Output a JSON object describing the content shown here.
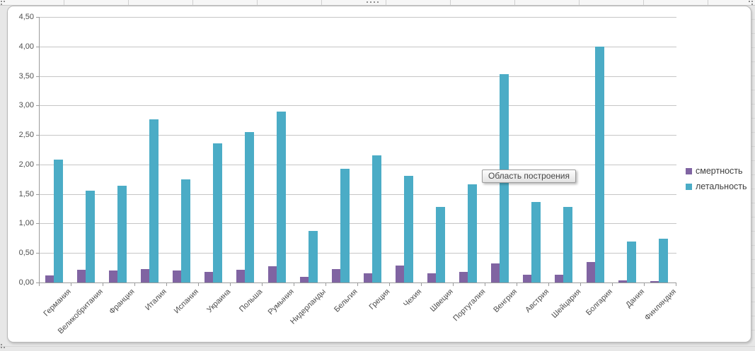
{
  "tooltip": {
    "text": "Область построения"
  },
  "legend": {
    "items": [
      {
        "label": "смертность",
        "color": "#8064A2"
      },
      {
        "label": "летальность",
        "color": "#4BACC6"
      }
    ]
  },
  "chart_data": {
    "type": "bar",
    "title": "",
    "xlabel": "",
    "ylabel": "",
    "categories": [
      "Германия",
      "Великобритания",
      "Франция",
      "Италия",
      "Испания",
      "Украина",
      "Польша",
      "Румыния",
      "Нидерланды",
      "Бельгия",
      "Греция",
      "Чехия",
      "Швеция",
      "Португалия",
      "Венгрия",
      "Австрия",
      "Шейцария",
      "Болгария",
      "Дания",
      "Финляндия"
    ],
    "series": [
      {
        "name": "смертность",
        "color": "#8064A2",
        "values": [
          0.12,
          0.22,
          0.2,
          0.23,
          0.2,
          0.18,
          0.21,
          0.27,
          0.1,
          0.23,
          0.15,
          0.29,
          0.15,
          0.18,
          0.32,
          0.13,
          0.13,
          0.35,
          0.04,
          0.02
        ]
      },
      {
        "name": "летальность",
        "color": "#4BACC6",
        "values": [
          2.08,
          1.56,
          1.64,
          2.77,
          1.75,
          2.36,
          2.55,
          2.9,
          0.87,
          1.93,
          2.15,
          1.81,
          1.28,
          1.66,
          3.53,
          1.37,
          1.28,
          4.0,
          0.7,
          0.74
        ]
      }
    ],
    "ylim": [
      0,
      4.5
    ],
    "ytick_step": 0.5,
    "ytick_labels": [
      "0,00",
      "0,50",
      "1,00",
      "1,50",
      "2,00",
      "2,50",
      "3,00",
      "3,50",
      "4,00",
      "4,50"
    ],
    "grid": true,
    "legend_position": "right"
  }
}
